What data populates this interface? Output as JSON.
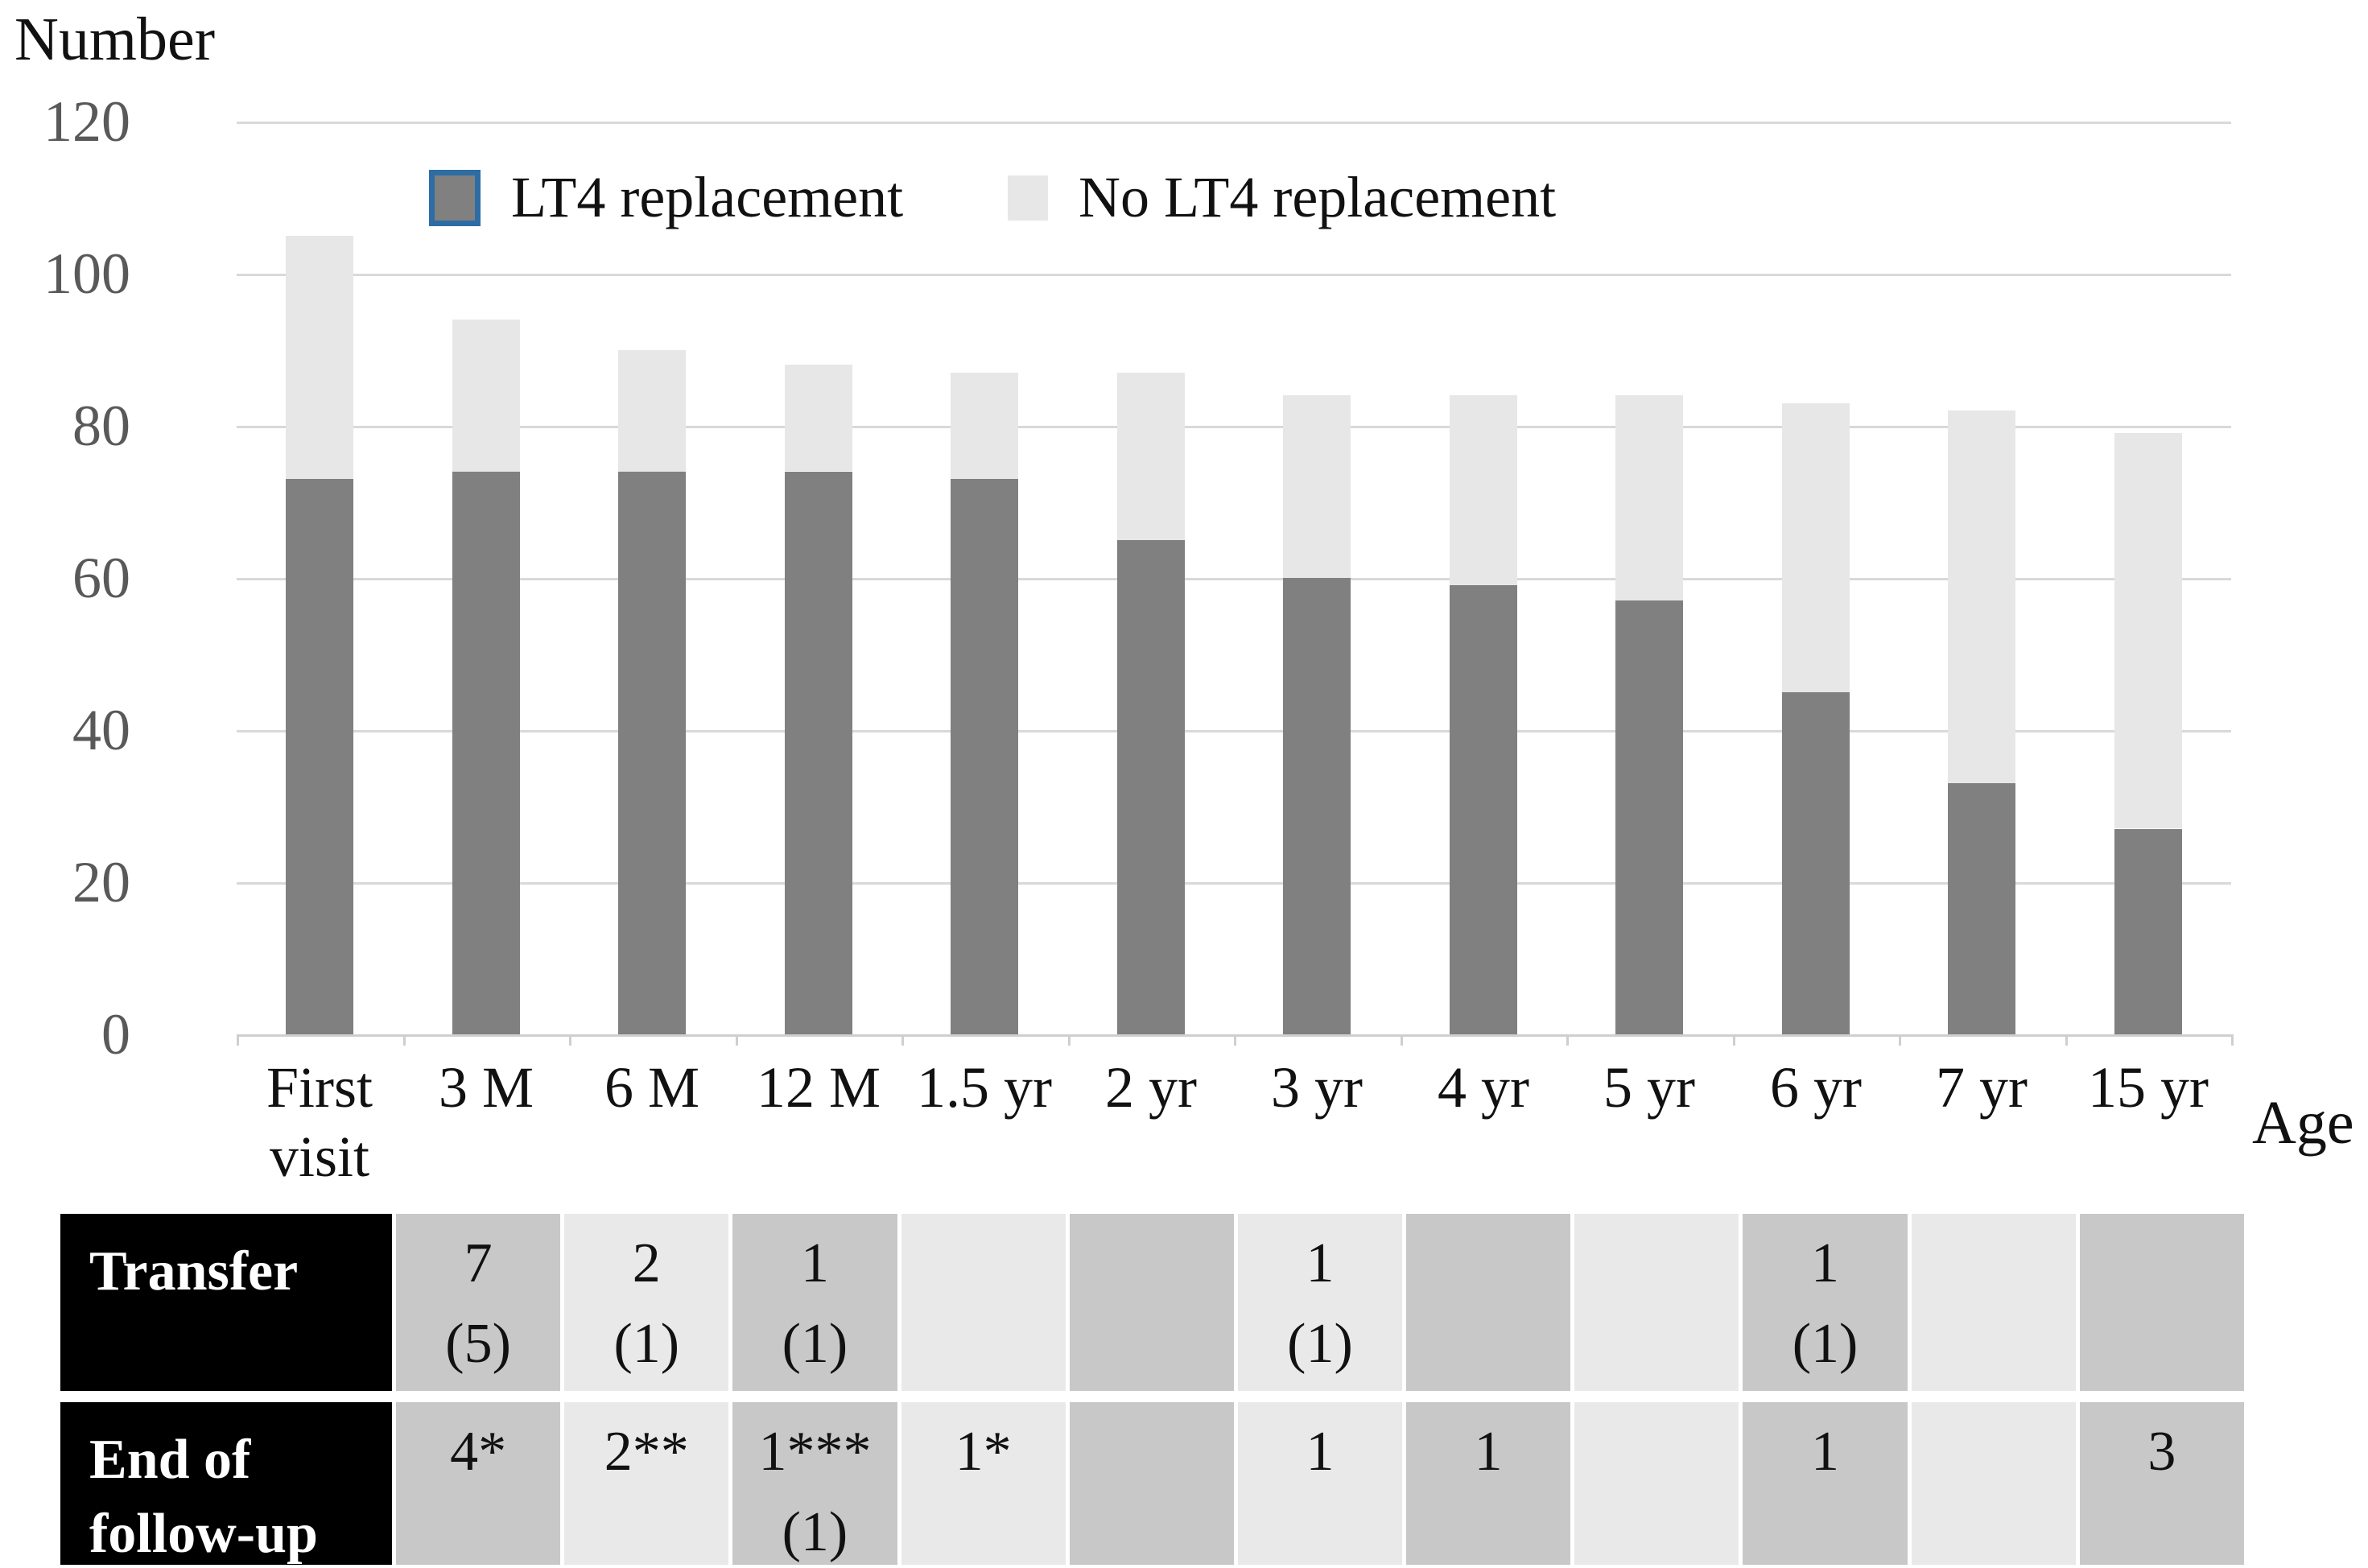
{
  "chart_data": {
    "type": "bar",
    "stacked": true,
    "title": "",
    "ylabel": "Number",
    "xlabel": "Age",
    "ylim": [
      0,
      120
    ],
    "ytick_step": 20,
    "yticks": [
      120,
      100,
      80,
      60,
      40,
      20,
      0
    ],
    "grid": true,
    "legend_position": "top-inside",
    "categories": [
      "First visit",
      "3 M",
      "6 M",
      "12 M",
      "1.5 yr",
      "2 yr",
      "3 yr",
      "4 yr",
      "5 yr",
      "6 yr",
      "7 yr",
      "15 yr"
    ],
    "series": [
      {
        "name": "LT4 replacement",
        "color": "#808080",
        "values": [
          73,
          74,
          74,
          74,
          73,
          65,
          60,
          59,
          57,
          45,
          33,
          27
        ]
      },
      {
        "name": "No LT4 replacement",
        "color": "#e7e7e7",
        "values": [
          32,
          20,
          16,
          14,
          14,
          22,
          24,
          25,
          27,
          38,
          49,
          52
        ]
      }
    ],
    "totals": [
      105,
      94,
      90,
      88,
      87,
      87,
      84,
      84,
      84,
      83,
      82,
      79
    ]
  },
  "table": {
    "columns": [
      "3 M",
      "6 M",
      "12 M",
      "1.5 yr",
      "2 yr",
      "3 yr",
      "4 yr",
      "5 yr",
      "6 yr",
      "7 yr",
      "15 yr"
    ],
    "rows": [
      {
        "header": "Transfer",
        "cells": [
          [
            "7",
            "(5)"
          ],
          [
            "2",
            "(1)"
          ],
          [
            "1",
            "(1)"
          ],
          [],
          [],
          [
            "1",
            "(1)"
          ],
          [],
          [],
          [
            "1",
            "(1)"
          ],
          [],
          []
        ]
      },
      {
        "header": "End of follow-up",
        "cells": [
          [
            "4*"
          ],
          [
            "2**"
          ],
          [
            "1***",
            "(1)"
          ],
          [
            "1*"
          ],
          [],
          [
            "1"
          ],
          [
            "1"
          ],
          [],
          [
            "1"
          ],
          [],
          [
            "3"
          ]
        ]
      }
    ]
  },
  "colors": {
    "lt4_bar": "#808080",
    "no_lt4_bar": "#e7e7e7",
    "gridline": "#d9d9d9",
    "table_dark_cell": "#c8c8c8",
    "table_light_cell": "#e9e9e9",
    "table_header_bg": "#000000",
    "table_header_text": "#ffffff",
    "legend_lt4_border": "#2e6da4",
    "axis_tick_text": "#595959"
  }
}
